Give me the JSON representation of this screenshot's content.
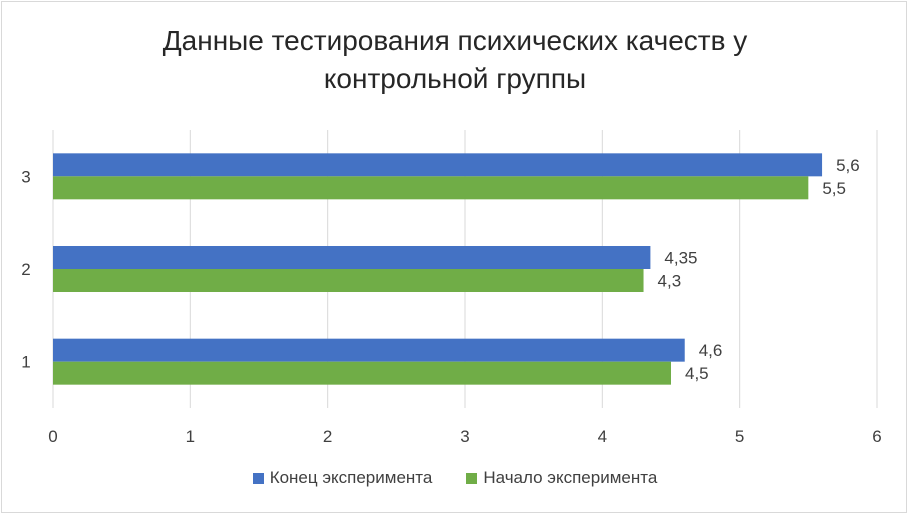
{
  "chart_data": {
    "type": "bar",
    "orientation": "horizontal",
    "title_line1": "Данные тестирования психических качеств у",
    "title_line2": "контрольной группы",
    "categories": [
      "1",
      "2",
      "3"
    ],
    "series": [
      {
        "name": "Конец эксперимента",
        "color": "#4472c4",
        "values": [
          4.6,
          4.35,
          5.6
        ],
        "labels": [
          "4,6",
          "4,35",
          "5,6"
        ]
      },
      {
        "name": "Начало эксперимента",
        "color": "#70ad47",
        "values": [
          4.5,
          4.3,
          5.5
        ],
        "labels": [
          "4,5",
          "4,3",
          "5,5"
        ]
      }
    ],
    "x_ticks": [
      "0",
      "1",
      "2",
      "3",
      "4",
      "5",
      "6"
    ],
    "xlim": [
      0,
      6
    ],
    "grid": true,
    "legend_position": "bottom"
  }
}
